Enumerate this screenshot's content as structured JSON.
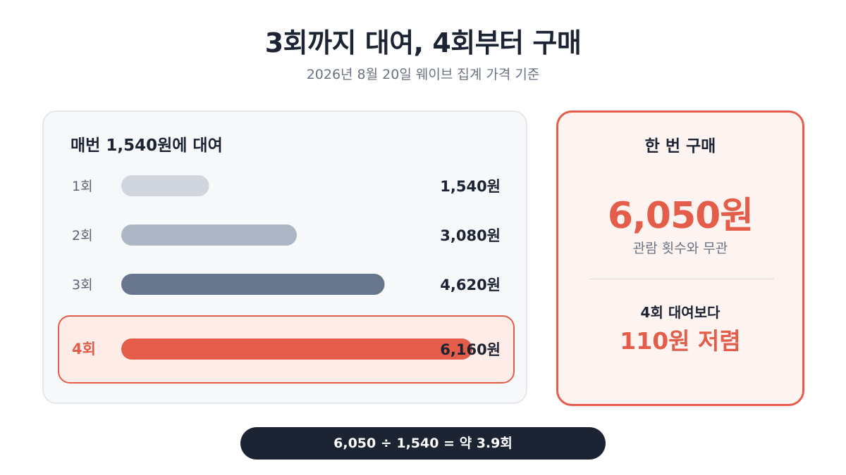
{
  "title": "3회까지 대여, 4회부터 구매",
  "subtitle": "2026년 8월 20일 웨이브 집계 가격 기준",
  "rental": {
    "heading": "매번 1,540원에 대여"
  },
  "purchase": {
    "heading": "한 번 구매",
    "price": "6,050원",
    "note": "관람 횟수와 무관",
    "compare_label": "4회 대여보다",
    "compare_value": "110원 저렴"
  },
  "formula": "6,050 ÷ 1,540 = 약 3.9회",
  "colors": {
    "accent": "#e35d4a",
    "bar_1": "#d1d5de",
    "bar_2": "#adb6c4",
    "bar_3": "#67768c",
    "bar_4": "#e35d4a",
    "dark": "#1c2333"
  },
  "chart_data": {
    "type": "bar",
    "orientation": "horizontal",
    "categories": [
      "1회",
      "2회",
      "3회",
      "4회"
    ],
    "values": [
      1540,
      3080,
      4620,
      6160
    ],
    "value_labels": [
      "1,540원",
      "3,080원",
      "4,620원",
      "6,160원"
    ],
    "highlight_index": 3,
    "xlim": [
      0,
      6160
    ],
    "grid": false
  }
}
